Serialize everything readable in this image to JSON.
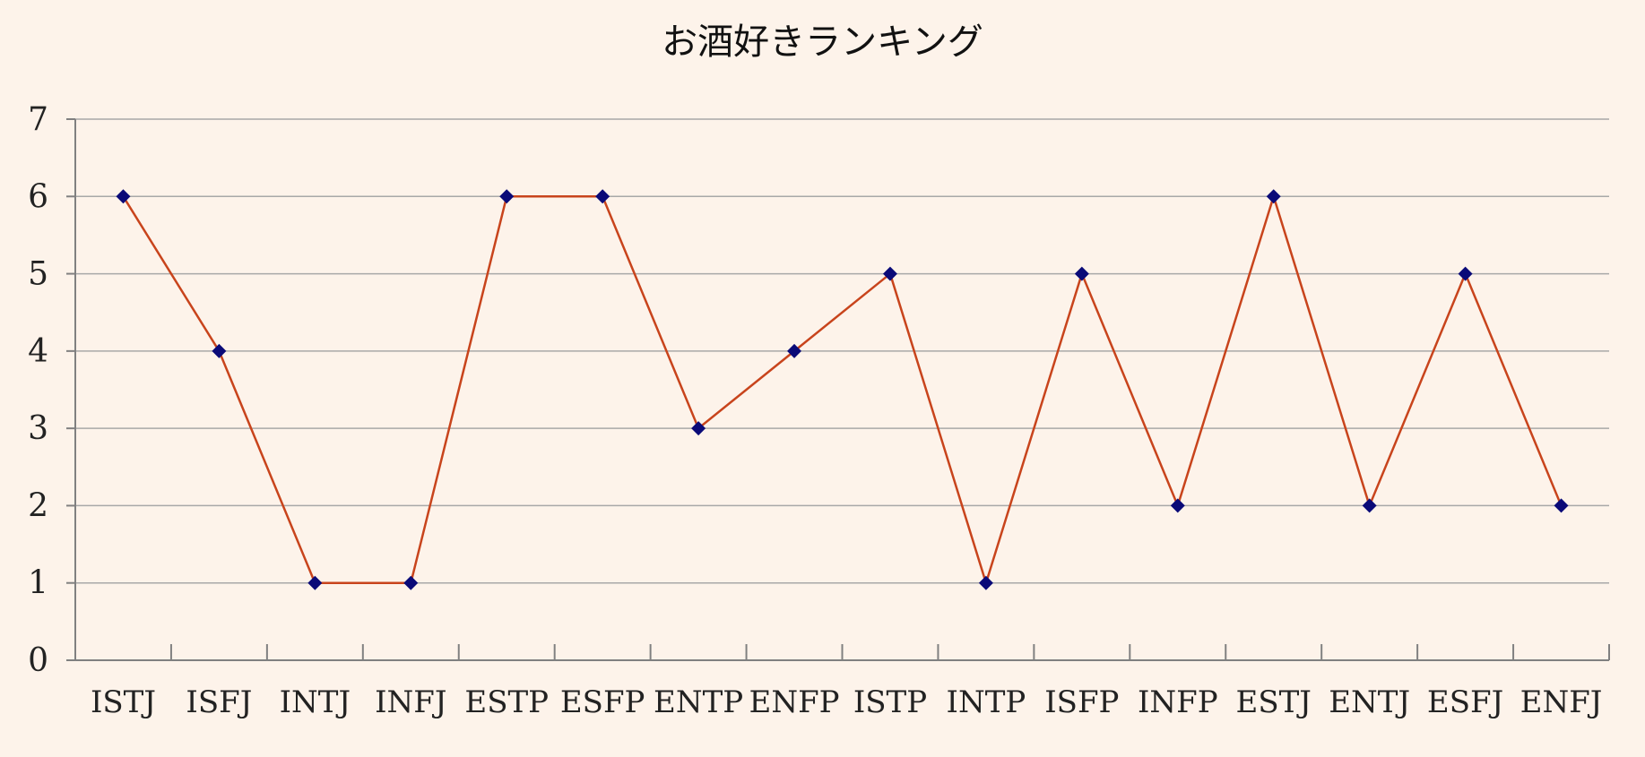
{
  "chart_data": {
    "type": "line",
    "title": "お酒好きランキング",
    "xlabel": "",
    "ylabel": "",
    "categories": [
      "ISTJ",
      "ISFJ",
      "INTJ",
      "INFJ",
      "ESTP",
      "ESFP",
      "ENTP",
      "ENFP",
      "ISTP",
      "INTP",
      "ISFP",
      "INFP",
      "ESTJ",
      "ENTJ",
      "ESFJ",
      "ENFJ"
    ],
    "series": [
      {
        "values": [
          6,
          4,
          1,
          1,
          6,
          6,
          3,
          4,
          5,
          1,
          5,
          2,
          6,
          2,
          5,
          2
        ]
      }
    ],
    "ylim": [
      0,
      7
    ],
    "yticks": [
      0,
      1,
      2,
      3,
      4,
      5,
      6,
      7
    ],
    "grid": true,
    "legend": "none",
    "colors": {
      "line": "#c8441c",
      "marker": "#0a0a78",
      "grid": "#a8a8a8",
      "axis": "#808080",
      "background": "#fdf3ea"
    }
  }
}
